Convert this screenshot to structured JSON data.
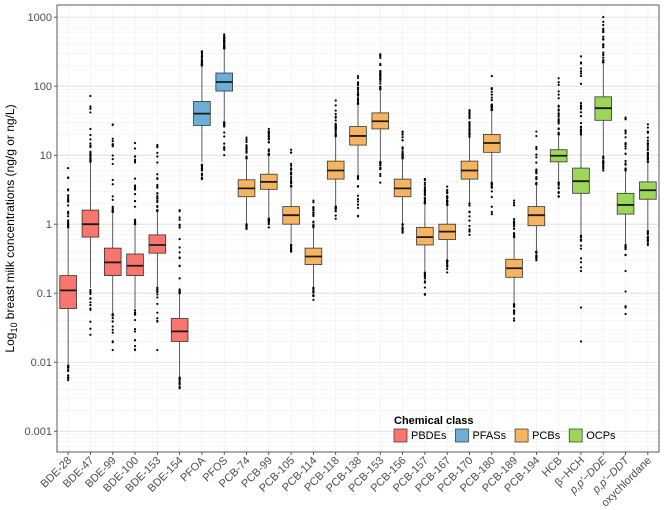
{
  "chart_data": {
    "type": "boxplot",
    "title": "",
    "xlabel": "",
    "ylabel": {
      "prefix": "Log",
      "subscript": "10",
      "suffix": " breast milk concentrations (ng/g or ng/L)"
    },
    "y_scale": "log10",
    "ylim": [
      0.0005,
      1500
    ],
    "y_ticks": [
      0.001,
      0.01,
      0.1,
      1,
      10,
      100,
      1000
    ],
    "y_tick_labels": [
      "0.001",
      "0.01",
      "0.1",
      "1",
      "10",
      "100",
      "1000"
    ],
    "grid": true,
    "legend": {
      "title": "Chemical class",
      "position": "bottom-right",
      "entries": [
        {
          "name": "PBDEs",
          "color": "#F8766D"
        },
        {
          "name": "PFASs",
          "color": "#6BAED6"
        },
        {
          "name": "PCBs",
          "color": "#F5B461"
        },
        {
          "name": "OCPs",
          "color": "#9CD65A"
        }
      ]
    },
    "categories": [
      {
        "label": "BDE-28",
        "class": "PBDEs",
        "min": 0.009,
        "q1": 0.06,
        "median": 0.11,
        "q3": 0.18,
        "max": 0.9,
        "out_low": 0.0055,
        "out_high": 6.5
      },
      {
        "label": "BDE-47",
        "class": "PBDEs",
        "min": 0.12,
        "q1": 0.65,
        "median": 1.0,
        "q3": 1.6,
        "max": 8,
        "out_low": 0.025,
        "out_high": 72
      },
      {
        "label": "BDE-99",
        "class": "PBDEs",
        "min": 0.05,
        "q1": 0.18,
        "median": 0.28,
        "q3": 0.45,
        "max": 1.5,
        "out_low": 0.015,
        "out_high": 28
      },
      {
        "label": "BDE-100",
        "class": "PBDEs",
        "min": 0.06,
        "q1": 0.18,
        "median": 0.25,
        "q3": 0.37,
        "max": 1.0,
        "out_low": 0.015,
        "out_high": 15
      },
      {
        "label": "BDE-153",
        "class": "PBDEs",
        "min": 0.12,
        "q1": 0.38,
        "median": 0.5,
        "q3": 0.7,
        "max": 1.5,
        "out_low": 0.015,
        "out_high": 14
      },
      {
        "label": "BDE-154",
        "class": "PBDEs",
        "min": 0.006,
        "q1": 0.02,
        "median": 0.028,
        "q3": 0.043,
        "max": 0.1,
        "out_low": 0.0042,
        "out_high": 1.6
      },
      {
        "label": "PFOA",
        "class": "PFASs",
        "min": 8,
        "q1": 27,
        "median": 40,
        "q3": 60,
        "max": 200,
        "out_low": 4.5,
        "out_high": 320
      },
      {
        "label": "PFOS",
        "class": "PFASs",
        "min": 30,
        "q1": 85,
        "median": 115,
        "q3": 155,
        "max": 350,
        "out_low": 10,
        "out_high": 560
      },
      {
        "label": "PCB-74",
        "class": "PCBs",
        "min": 1.0,
        "q1": 2.5,
        "median": 3.3,
        "q3": 4.4,
        "max": 9,
        "out_low": 0.85,
        "out_high": 18
      },
      {
        "label": "PCB-99",
        "class": "PCBs",
        "min": 1.2,
        "q1": 3.2,
        "median": 4.1,
        "q3": 5.3,
        "max": 10,
        "out_low": 0.9,
        "out_high": 24
      },
      {
        "label": "PCB-105",
        "class": "PCBs",
        "min": 0.5,
        "q1": 1.0,
        "median": 1.35,
        "q3": 1.8,
        "max": 3.5,
        "out_low": 0.4,
        "out_high": 12
      },
      {
        "label": "PCB-114",
        "class": "PCBs",
        "min": 0.12,
        "q1": 0.26,
        "median": 0.34,
        "q3": 0.45,
        "max": 0.9,
        "out_low": 0.08,
        "out_high": 2.2
      },
      {
        "label": "PCB-118",
        "class": "PCBs",
        "min": 1.8,
        "q1": 4.5,
        "median": 6.0,
        "q3": 8.2,
        "max": 18,
        "out_low": 1.2,
        "out_high": 62
      },
      {
        "label": "PCB-138",
        "class": "PCBs",
        "min": 5,
        "q1": 14,
        "median": 19,
        "q3": 26,
        "max": 55,
        "out_low": 1.3,
        "out_high": 140
      },
      {
        "label": "PCB-153",
        "class": "PCBs",
        "min": 8,
        "q1": 24,
        "median": 31,
        "q3": 41,
        "max": 90,
        "out_low": 4,
        "out_high": 290
      },
      {
        "label": "PCB-156",
        "class": "PCBs",
        "min": 1.0,
        "q1": 2.5,
        "median": 3.3,
        "q3": 4.5,
        "max": 9,
        "out_low": 0.75,
        "out_high": 22
      },
      {
        "label": "PCB-157",
        "class": "PCBs",
        "min": 0.2,
        "q1": 0.5,
        "median": 0.65,
        "q3": 0.9,
        "max": 2,
        "out_low": 0.095,
        "out_high": 4.5
      },
      {
        "label": "PCB-167",
        "class": "PCBs",
        "min": 0.3,
        "q1": 0.6,
        "median": 0.78,
        "q3": 1.0,
        "max": 1.9,
        "out_low": 0.2,
        "out_high": 3.5
      },
      {
        "label": "PCB-170",
        "class": "PCBs",
        "min": 2.0,
        "q1": 4.5,
        "median": 6.0,
        "q3": 8.2,
        "max": 18,
        "out_low": 0.7,
        "out_high": 45
      },
      {
        "label": "PCB-180",
        "class": "PCBs",
        "min": 4,
        "q1": 11,
        "median": 15,
        "q3": 20,
        "max": 45,
        "out_low": 1.4,
        "out_high": 140
      },
      {
        "label": "PCB-189",
        "class": "PCBs",
        "min": 0.07,
        "q1": 0.17,
        "median": 0.23,
        "q3": 0.31,
        "max": 0.65,
        "out_low": 0.04,
        "out_high": 2.2
      },
      {
        "label": "PCB-194",
        "class": "PCBs",
        "min": 0.4,
        "q1": 0.95,
        "median": 1.35,
        "q3": 1.8,
        "max": 3.8,
        "out_low": 0.3,
        "out_high": 22
      },
      {
        "label": "HCB",
        "class": "OCPs",
        "min": 4,
        "q1": 8,
        "median": 9.8,
        "q3": 12,
        "max": 20,
        "out_low": 2.5,
        "out_high": 130
      },
      {
        "label": "β−HCH",
        "class": "OCPs",
        "min": 0.7,
        "q1": 2.8,
        "median": 4.2,
        "q3": 6.5,
        "max": 20,
        "out_low": 0.02,
        "out_high": 270
      },
      {
        "label": "p,p′−DDE",
        "class": "OCPs",
        "min": 10,
        "q1": 32,
        "median": 48,
        "q3": 70,
        "max": 220,
        "out_low": 6,
        "out_high": 1000
      },
      {
        "label": "p,p′−DDT",
        "class": "OCPs",
        "min": 0.5,
        "q1": 1.4,
        "median": 1.9,
        "q3": 2.8,
        "max": 6,
        "out_low": 0.05,
        "out_high": 35
      },
      {
        "label": "oxychlordane",
        "class": "OCPs",
        "min": 0.8,
        "q1": 2.3,
        "median": 3.1,
        "q3": 4.1,
        "max": 8,
        "out_low": 0.5,
        "out_high": 28
      }
    ]
  }
}
